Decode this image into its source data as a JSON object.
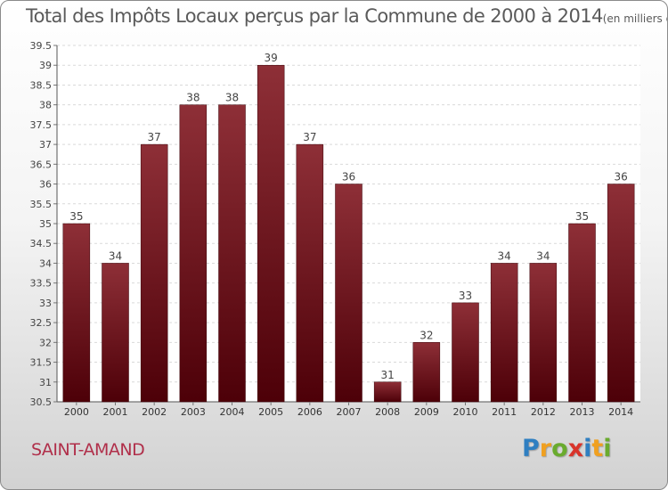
{
  "header": {
    "title": "Total des Impôts Locaux perçus par la Commune de 2000 à 2014",
    "unit": "(en milliers d'€)"
  },
  "footer": {
    "commune": "SAINT-AMAND",
    "logo_letters": [
      {
        "char": "P",
        "color": "#2f7fc1"
      },
      {
        "char": "r",
        "color": "#f0a020"
      },
      {
        "char": "o",
        "color": "#6aab2e"
      },
      {
        "char": "x",
        "color": "#d9342b"
      },
      {
        "char": "i",
        "color": "#2f7fc1"
      },
      {
        "char": "t",
        "color": "#f0a020"
      },
      {
        "char": "i",
        "color": "#6aab2e"
      }
    ]
  },
  "colors": {
    "bar_top": "#8e2f37",
    "bar_bottom": "#4d0008",
    "title": "#5a5a5a",
    "commune": "#b02f4a"
  },
  "chart_data": {
    "type": "bar",
    "title": "Total des Impôts Locaux perçus par la Commune de 2000 à 2014",
    "subtitle": "(en milliers d'€)",
    "xlabel": "",
    "ylabel": "",
    "categories": [
      "2000",
      "2001",
      "2002",
      "2003",
      "2004",
      "2005",
      "2006",
      "2007",
      "2008",
      "2009",
      "2010",
      "2011",
      "2012",
      "2013",
      "2014"
    ],
    "values": [
      35,
      34,
      37,
      38,
      38,
      39,
      37,
      36,
      31,
      32,
      33,
      34,
      34,
      35,
      36
    ],
    "ylim": [
      30.5,
      39.5
    ],
    "yticks": [
      30.5,
      31,
      31.5,
      32,
      32.5,
      33,
      33.5,
      34,
      34.5,
      35,
      35.5,
      36,
      36.5,
      37,
      37.5,
      38,
      38.5,
      39,
      39.5
    ],
    "grid": "horizontal",
    "legend": "none"
  }
}
